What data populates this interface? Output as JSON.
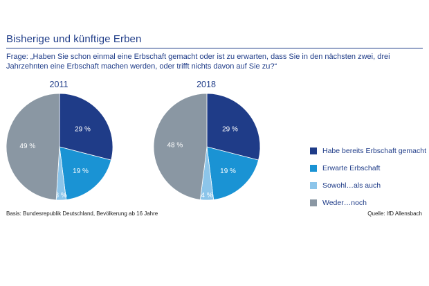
{
  "header": {
    "title": "Bisherige und künftige Erben",
    "question": "Frage: „Haben Sie schon einmal eine Erbschaft gemacht oder ist zu erwarten, dass Sie in den nächsten zwei, drei Jahrzehnten eine Erbschaft machen werden, oder trifft nichts davon auf Sie zu?“"
  },
  "chart_data": [
    {
      "type": "pie",
      "title": "2011",
      "categories": [
        "Habe bereits Erbschaft gemacht",
        "Erwarte Erbschaft",
        "Sowohl…als auch",
        "Weder…noch"
      ],
      "values": [
        29,
        19,
        3,
        49
      ],
      "labels": [
        "29 %",
        "19 %",
        "3 %",
        "49 %"
      ],
      "colors": [
        "#1f3c88",
        "#1a93d4",
        "#8cc5ea",
        "#8a97a3"
      ]
    },
    {
      "type": "pie",
      "title": "2018",
      "categories": [
        "Habe bereits Erbschaft gemacht",
        "Erwarte Erbschaft",
        "Sowohl…als auch",
        "Weder…noch"
      ],
      "values": [
        29,
        19,
        4,
        48
      ],
      "labels": [
        "29 %",
        "19 %",
        "4 %",
        "48 %"
      ],
      "colors": [
        "#1f3c88",
        "#1a93d4",
        "#8cc5ea",
        "#8a97a3"
      ]
    }
  ],
  "legend": {
    "placement": "right",
    "items": [
      {
        "label": "Habe bereits Erbschaft gemacht",
        "color": "#1f3c88"
      },
      {
        "label": "Erwarte Erbschaft",
        "color": "#1a93d4"
      },
      {
        "label": "Sowohl…als auch",
        "color": "#8cc5ea"
      },
      {
        "label": "Weder…noch",
        "color": "#8a97a3"
      }
    ]
  },
  "footer": {
    "basis": "Basis: Bundesrepublik Deutschland, Bevölkerung ab 16 Jahre",
    "source": "Quelle: IfD Allensbach"
  }
}
